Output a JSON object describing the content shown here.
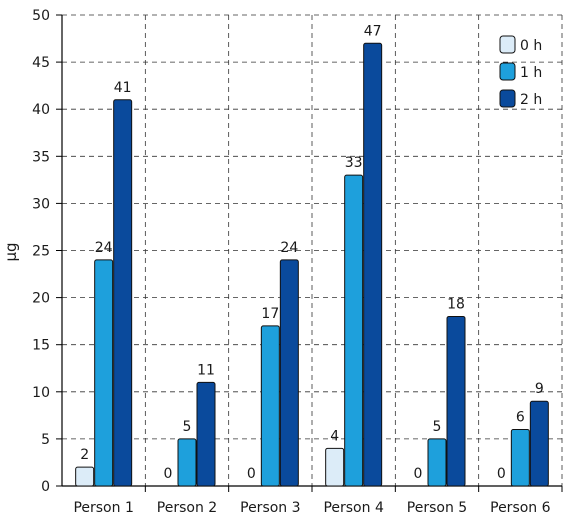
{
  "chart_data": {
    "type": "bar",
    "ylabel": "µg",
    "xlabel": "",
    "ylim": [
      0,
      50
    ],
    "yticks": [
      0,
      5,
      10,
      15,
      20,
      25,
      30,
      35,
      40,
      45,
      50
    ],
    "categories": [
      "Person 1",
      "Person 2",
      "Person 3",
      "Person 4",
      "Person 5",
      "Person 6"
    ],
    "series": [
      {
        "name": "0 h",
        "color": "#dcecf8",
        "values": [
          2,
          0,
          0,
          4,
          0,
          0
        ],
        "labels": [
          "2",
          "0",
          "0",
          "4",
          "0",
          "0"
        ]
      },
      {
        "name": "1 h",
        "color": "#1ea0dc",
        "values": [
          24,
          5,
          17,
          33,
          5,
          6
        ],
        "labels": [
          "24",
          "5",
          "17",
          "33",
          "5",
          "6"
        ]
      },
      {
        "name": "2 h",
        "color": "#0a4a9c",
        "values": [
          41,
          11,
          24,
          47,
          18,
          9
        ],
        "labels": [
          "41",
          "11",
          "24",
          "47",
          "18",
          "9"
        ]
      }
    ],
    "grid": true,
    "legend_position": "top-right"
  }
}
